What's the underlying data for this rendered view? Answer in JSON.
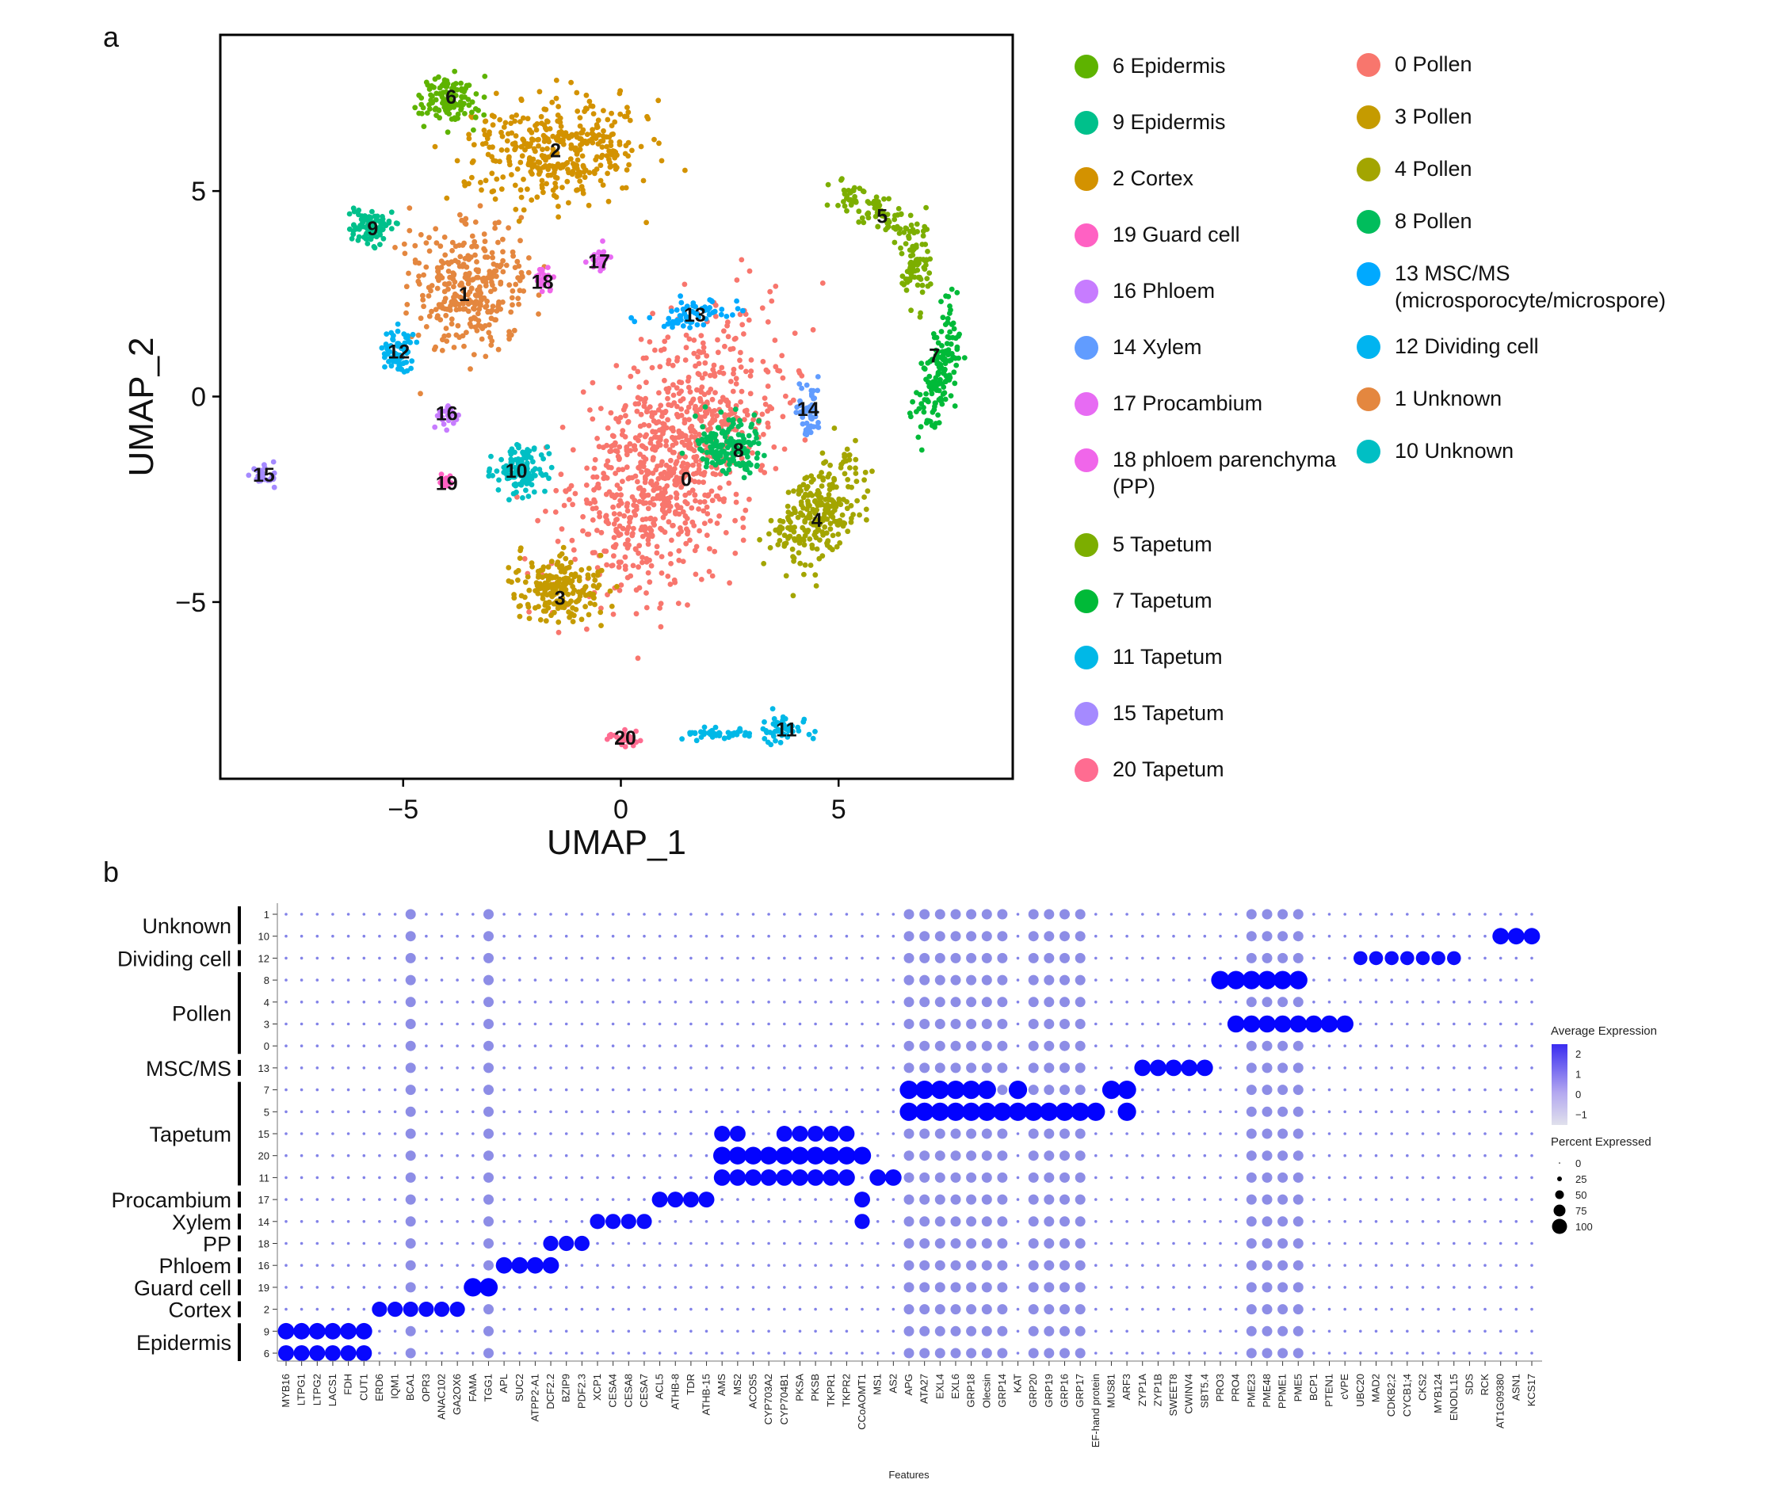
{
  "panels": {
    "a": "a",
    "b": "b"
  },
  "chart_data": [
    {
      "type": "scatter",
      "xlabel": "UMAP_1",
      "ylabel": "UMAP_2",
      "xlim": [
        -9.2,
        9
      ],
      "ylim": [
        -9.3,
        8.8
      ],
      "xticks": [
        -5,
        0,
        5
      ],
      "yticks": [
        -5,
        0,
        5
      ],
      "tick_labels": {
        "x": [
          "−5",
          "0",
          "5"
        ],
        "y": [
          "−5",
          "0",
          "5"
        ]
      },
      "grid": false,
      "legend_position": "right",
      "clusters": [
        {
          "id": "0",
          "name": "0 Pollen",
          "color": "#F8766D",
          "center": [
            1.5,
            -2.0
          ]
        },
        {
          "id": "1",
          "name": "1 Unknown",
          "color": "#E4873F",
          "center": [
            -3.6,
            2.5
          ]
        },
        {
          "id": "2",
          "name": "2 Cortex",
          "color": "#D39200",
          "center": [
            -1.5,
            6.0
          ]
        },
        {
          "id": "3",
          "name": "3 Pollen",
          "color": "#C59B00",
          "center": [
            -1.4,
            -4.9
          ]
        },
        {
          "id": "4",
          "name": "4 Pollen",
          "color": "#A3A500",
          "center": [
            4.5,
            -3.0
          ]
        },
        {
          "id": "5",
          "name": "5 Tapetum",
          "color": "#7CAE00",
          "center": [
            6.0,
            4.4
          ]
        },
        {
          "id": "6",
          "name": "6 Epidermis",
          "color": "#5EB300",
          "center": [
            -3.9,
            7.3
          ]
        },
        {
          "id": "7",
          "name": "7 Tapetum",
          "color": "#00BA38",
          "center": [
            7.2,
            1.0
          ]
        },
        {
          "id": "8",
          "name": "8 Pollen",
          "color": "#00BD5C",
          "center": [
            2.7,
            -1.3
          ]
        },
        {
          "id": "9",
          "name": "9 Epidermis",
          "color": "#00C08B",
          "center": [
            -5.7,
            4.1
          ]
        },
        {
          "id": "10",
          "name": "10 Unknown",
          "color": "#00BFC4",
          "center": [
            -2.4,
            -1.8
          ]
        },
        {
          "id": "11",
          "name": "11 Tapetum",
          "color": "#00B8E7",
          "center": [
            3.8,
            -8.1
          ]
        },
        {
          "id": "12",
          "name": "12 Dividing cell",
          "color": "#00B4F0",
          "center": [
            -5.1,
            1.1
          ]
        },
        {
          "id": "13",
          "name": "13 MSC/MS\n(microsporocyte/microspore)",
          "color": "#00A9FF",
          "center": [
            1.7,
            2.0
          ]
        },
        {
          "id": "14",
          "name": "14 Xylem",
          "color": "#619CFF",
          "center": [
            4.3,
            -0.3
          ]
        },
        {
          "id": "15",
          "name": "15 Tapetum",
          "color": "#A58AFF",
          "center": [
            -8.2,
            -1.9
          ]
        },
        {
          "id": "16",
          "name": "16 Phloem",
          "color": "#C77CFF",
          "center": [
            -4.0,
            -0.4
          ]
        },
        {
          "id": "17",
          "name": "17 Procambium",
          "color": "#E76BF3",
          "center": [
            -0.5,
            3.3
          ]
        },
        {
          "id": "18",
          "name": "18 phloem parenchyma\n(PP)",
          "color": "#F066EA",
          "center": [
            -1.8,
            2.8
          ]
        },
        {
          "id": "19",
          "name": "19 Guard cell",
          "color": "#FF61C3",
          "center": [
            -4.0,
            -2.1
          ]
        },
        {
          "id": "20",
          "name": "20 Tapetum",
          "color": "#FF6C91",
          "center": [
            0.1,
            -8.3
          ]
        }
      ],
      "legend_order_left": [
        "6",
        "9",
        "2",
        "19",
        "16",
        "14",
        "17",
        "18",
        "5",
        "7",
        "11",
        "15",
        "20"
      ],
      "legend_order_right": [
        "0",
        "3",
        "4",
        "8",
        "13",
        "12",
        "1",
        "10"
      ]
    },
    {
      "type": "dotplot",
      "xlabel": "Features",
      "ylabel": "",
      "features": [
        "MYB16",
        "LTPG1",
        "LTPG2",
        "LACS1",
        "FDH",
        "CUT1",
        "ERD6",
        "IQM1",
        "BCA1",
        "OPR3",
        "ANAC102",
        "GA2OX6",
        "FAMA",
        "TGG1",
        "APL",
        "SUC2",
        "ATPP2-A1",
        "DCF2.2",
        "BZIP9",
        "PDF2.3",
        "XCP1",
        "CESA4",
        "CESA8",
        "CESA7",
        "ACL5",
        "ATHB-8",
        "TDR",
        "ATHB-15",
        "AMS",
        "MS2",
        "ACOS5",
        "CYP703A2",
        "CYP704B1",
        "PKSA",
        "PKSB",
        "TKPR1",
        "TKPR2",
        "CCoAOMT1",
        "MS1",
        "AS2",
        "APG",
        "ATA27",
        "EXL4",
        "EXL6",
        "GRP18",
        "Olecsin",
        "GRP14",
        "KAT",
        "GRP20",
        "GRP19",
        "GRP16",
        "GRP17",
        "EF-hand protein",
        "MUS81",
        "ARF3",
        "ZYP1A",
        "ZYP1B",
        "SWEET8",
        "CWINV4",
        "SBT5.4",
        "PRO3",
        "PRO4",
        "PME23",
        "PME48",
        "PPME1",
        "PME5",
        "BCP1",
        "PTEN1",
        "cVPE",
        "UBC20",
        "MAD2",
        "CDKB2;2",
        "CYCB1;4",
        "CKS2",
        "MYB124",
        "ENODL15",
        "SDS",
        "RCK",
        "AT1G09380",
        "ASN1",
        "KCS17"
      ],
      "clusters": [
        "1",
        "10",
        "12",
        "8",
        "4",
        "3",
        "0",
        "13",
        "7",
        "5",
        "15",
        "20",
        "11",
        "17",
        "14",
        "18",
        "16",
        "19",
        "2",
        "9",
        "6"
      ],
      "groups": [
        {
          "label": "Unknown",
          "clusters": [
            "1",
            "10"
          ]
        },
        {
          "label": "Dividing cell",
          "clusters": [
            "12"
          ]
        },
        {
          "label": "Pollen",
          "clusters": [
            "8",
            "4",
            "3",
            "0"
          ]
        },
        {
          "label": "MSC/MS",
          "clusters": [
            "13"
          ]
        },
        {
          "label": "Tapetum",
          "clusters": [
            "7",
            "5",
            "15",
            "20",
            "11"
          ]
        },
        {
          "label": "Procambium",
          "clusters": [
            "17"
          ]
        },
        {
          "label": "Xylem",
          "clusters": [
            "14"
          ]
        },
        {
          "label": "PP",
          "clusters": [
            "18"
          ]
        },
        {
          "label": "Phloem",
          "clusters": [
            "16"
          ]
        },
        {
          "label": "Guard cell",
          "clusters": [
            "19"
          ]
        },
        {
          "label": "Cortex",
          "clusters": [
            "2"
          ]
        },
        {
          "label": "Epidermis",
          "clusters": [
            "9",
            "6"
          ]
        }
      ],
      "color_scale": {
        "low": "#d9d9d9",
        "high": "#0000ff"
      },
      "legend": {
        "color_title": "Average Expression",
        "color_ticks": [
          "2",
          "1",
          "0",
          "−1"
        ],
        "size_title": "Percent Expressed",
        "size_ticks": [
          "0",
          "25",
          "50",
          "75",
          "100"
        ]
      },
      "marker_pattern": [
        {
          "cluster": "6",
          "features": [
            "MYB16",
            "LTPG1",
            "LTPG2",
            "LACS1",
            "FDH",
            "CUT1"
          ],
          "level": 0.75
        },
        {
          "cluster": "9",
          "features": [
            "MYB16",
            "LTPG1",
            "LTPG2",
            "LACS1",
            "FDH",
            "CUT1"
          ],
          "level": 0.8
        },
        {
          "cluster": "2",
          "features": [
            "ERD6",
            "IQM1",
            "BCA1",
            "OPR3",
            "ANAC102",
            "GA2OX6"
          ],
          "level": 0.7
        },
        {
          "cluster": "19",
          "features": [
            "FAMA",
            "TGG1"
          ],
          "level": 0.95
        },
        {
          "cluster": "16",
          "features": [
            "APL",
            "SUC2",
            "ATPP2-A1",
            "DCF2.2"
          ],
          "level": 0.8
        },
        {
          "cluster": "18",
          "features": [
            "DCF2.2",
            "BZIP9",
            "PDF2.3"
          ],
          "level": 0.7
        },
        {
          "cluster": "14",
          "features": [
            "XCP1",
            "CESA4",
            "CESA8",
            "CESA7",
            "CCoAOMT1"
          ],
          "level": 0.7
        },
        {
          "cluster": "17",
          "features": [
            "ACL5",
            "ATHB-8",
            "TDR",
            "ATHB-15",
            "CCoAOMT1"
          ],
          "level": 0.75
        },
        {
          "cluster": "11",
          "features": [
            "AMS",
            "MS2",
            "ACOS5",
            "CYP703A2",
            "CYP704B1",
            "PKSA",
            "PKSB",
            "TKPR1",
            "TKPR2",
            "MS1",
            "AS2"
          ],
          "level": 0.8
        },
        {
          "cluster": "20",
          "features": [
            "AMS",
            "MS2",
            "ACOS5",
            "CYP703A2",
            "CYP704B1",
            "PKSA",
            "PKSB",
            "TKPR1",
            "TKPR2",
            "CCoAOMT1"
          ],
          "level": 0.9
        },
        {
          "cluster": "15",
          "features": [
            "AMS",
            "MS2",
            "CYP704B1",
            "PKSA",
            "PKSB",
            "TKPR1",
            "TKPR2"
          ],
          "level": 0.75
        },
        {
          "cluster": "5",
          "features": [
            "APG",
            "ATA27",
            "EXL4",
            "EXL6",
            "GRP18",
            "Olecsin",
            "GRP14",
            "KAT",
            "GRP20",
            "GRP19",
            "GRP16",
            "GRP17",
            "EF-hand protein",
            "ARF3"
          ],
          "level": 0.95
        },
        {
          "cluster": "7",
          "features": [
            "APG",
            "ATA27",
            "EXL4",
            "EXL6",
            "GRP18",
            "Olecsin",
            "KAT",
            "MUS81",
            "ARF3"
          ],
          "level": 0.95
        },
        {
          "cluster": "13",
          "features": [
            "ZYP1A",
            "ZYP1B",
            "SWEET8",
            "CWINV4",
            "SBT5.4"
          ],
          "level": 0.8
        },
        {
          "cluster": "8",
          "features": [
            "PRO3",
            "PRO4",
            "PME23",
            "PME48",
            "PPME1",
            "PME5"
          ],
          "level": 0.95
        },
        {
          "cluster": "3",
          "features": [
            "PRO4",
            "PME23",
            "PME48",
            "PPME1",
            "PME5",
            "BCP1",
            "PTEN1",
            "cVPE"
          ],
          "level": 0.85
        },
        {
          "cluster": "12",
          "features": [
            "UBC20",
            "MAD2",
            "CDKB2;2",
            "CYCB1;4",
            "CKS2",
            "MYB124",
            "ENODL15"
          ],
          "level": 0.6
        },
        {
          "cluster": "10",
          "features": [
            "AT1G09380",
            "ASN1",
            "KCS17"
          ],
          "level": 0.8
        }
      ]
    }
  ]
}
